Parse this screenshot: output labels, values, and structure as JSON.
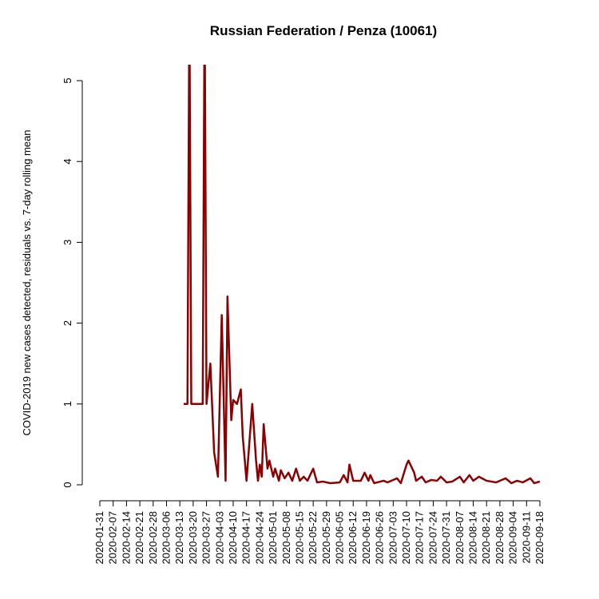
{
  "chart_data": {
    "type": "line",
    "title": "Russian Federation / Penza (10061)",
    "y_label": "COVID-2019 new cases detected, residuals vs. 7-day rolling mean",
    "xlim": [
      "2020-01-31",
      "2020-09-18"
    ],
    "xticks": [
      "2020-01-31",
      "2020-02-07",
      "2020-02-14",
      "2020-02-21",
      "2020-02-28",
      "2020-03-06",
      "2020-03-13",
      "2020-03-20",
      "2020-03-27",
      "2020-04-03",
      "2020-04-10",
      "2020-04-17",
      "2020-04-24",
      "2020-05-01",
      "2020-05-08",
      "2020-05-15",
      "2020-05-22",
      "2020-05-29",
      "2020-06-05",
      "2020-06-12",
      "2020-06-19",
      "2020-06-26",
      "2020-07-03",
      "2020-07-10",
      "2020-07-17",
      "2020-07-24",
      "2020-07-31",
      "2020-08-07",
      "2020-08-14",
      "2020-08-21",
      "2020-08-28",
      "2020-09-04",
      "2020-09-11",
      "2020-09-18"
    ],
    "ylim": [
      0,
      5
    ],
    "yticks": [
      0,
      1,
      2,
      3,
      4,
      5
    ],
    "x": [
      "2020-03-15",
      "2020-03-17",
      "2020-03-18",
      "2020-03-19",
      "2020-03-22",
      "2020-03-25",
      "2020-03-26",
      "2020-03-27",
      "2020-03-29",
      "2020-03-31",
      "2020-04-02",
      "2020-04-04",
      "2020-04-06",
      "2020-04-07",
      "2020-04-09",
      "2020-04-10",
      "2020-04-12",
      "2020-04-14",
      "2020-04-15",
      "2020-04-17",
      "2020-04-20",
      "2020-04-22",
      "2020-04-23",
      "2020-04-24",
      "2020-04-25",
      "2020-04-26",
      "2020-04-28",
      "2020-04-29",
      "2020-05-01",
      "2020-05-02",
      "2020-05-04",
      "2020-05-05",
      "2020-05-07",
      "2020-05-09",
      "2020-05-11",
      "2020-05-13",
      "2020-05-15",
      "2020-05-17",
      "2020-05-19",
      "2020-05-22",
      "2020-05-24",
      "2020-05-27",
      "2020-05-31",
      "2020-06-05",
      "2020-06-07",
      "2020-06-09",
      "2020-06-10",
      "2020-06-12",
      "2020-06-16",
      "2020-06-18",
      "2020-06-20",
      "2020-06-21",
      "2020-06-23",
      "2020-06-28",
      "2020-06-30",
      "2020-07-05",
      "2020-07-07",
      "2020-07-10",
      "2020-07-11",
      "2020-07-14",
      "2020-07-15",
      "2020-07-18",
      "2020-07-20",
      "2020-07-23",
      "2020-07-26",
      "2020-07-28",
      "2020-07-31",
      "2020-08-03",
      "2020-08-07",
      "2020-08-09",
      "2020-08-12",
      "2020-08-14",
      "2020-08-17",
      "2020-08-21",
      "2020-08-26",
      "2020-08-31",
      "2020-09-03",
      "2020-09-06",
      "2020-09-09",
      "2020-09-13",
      "2020-09-15",
      "2020-09-18"
    ],
    "series": [
      {
        "color": "#8b0000",
        "values": [
          1,
          1,
          6,
          1,
          1,
          1,
          6,
          1,
          1.5,
          0.4,
          0.1,
          2.1,
          0.05,
          2.33,
          0.8,
          1.05,
          1.0,
          1.18,
          0.6,
          0.05,
          1.0,
          0.3,
          0.05,
          0.25,
          0.1,
          0.75,
          0.2,
          0.3,
          0.1,
          0.2,
          0.05,
          0.18,
          0.08,
          0.15,
          0.05,
          0.2,
          0.05,
          0.1,
          0.05,
          0.2,
          0.03,
          0.04,
          0.02,
          0.03,
          0.12,
          0.03,
          0.25,
          0.05,
          0.05,
          0.15,
          0.05,
          0.12,
          0.02,
          0.05,
          0.03,
          0.08,
          0.02,
          0.25,
          0.3,
          0.15,
          0.05,
          0.1,
          0.03,
          0.06,
          0.05,
          0.1,
          0.03,
          0.04,
          0.1,
          0.03,
          0.12,
          0.05,
          0.1,
          0.05,
          0.03,
          0.08,
          0.02,
          0.05,
          0.03,
          0.08,
          0.02,
          0.04
        ]
      }
    ]
  }
}
